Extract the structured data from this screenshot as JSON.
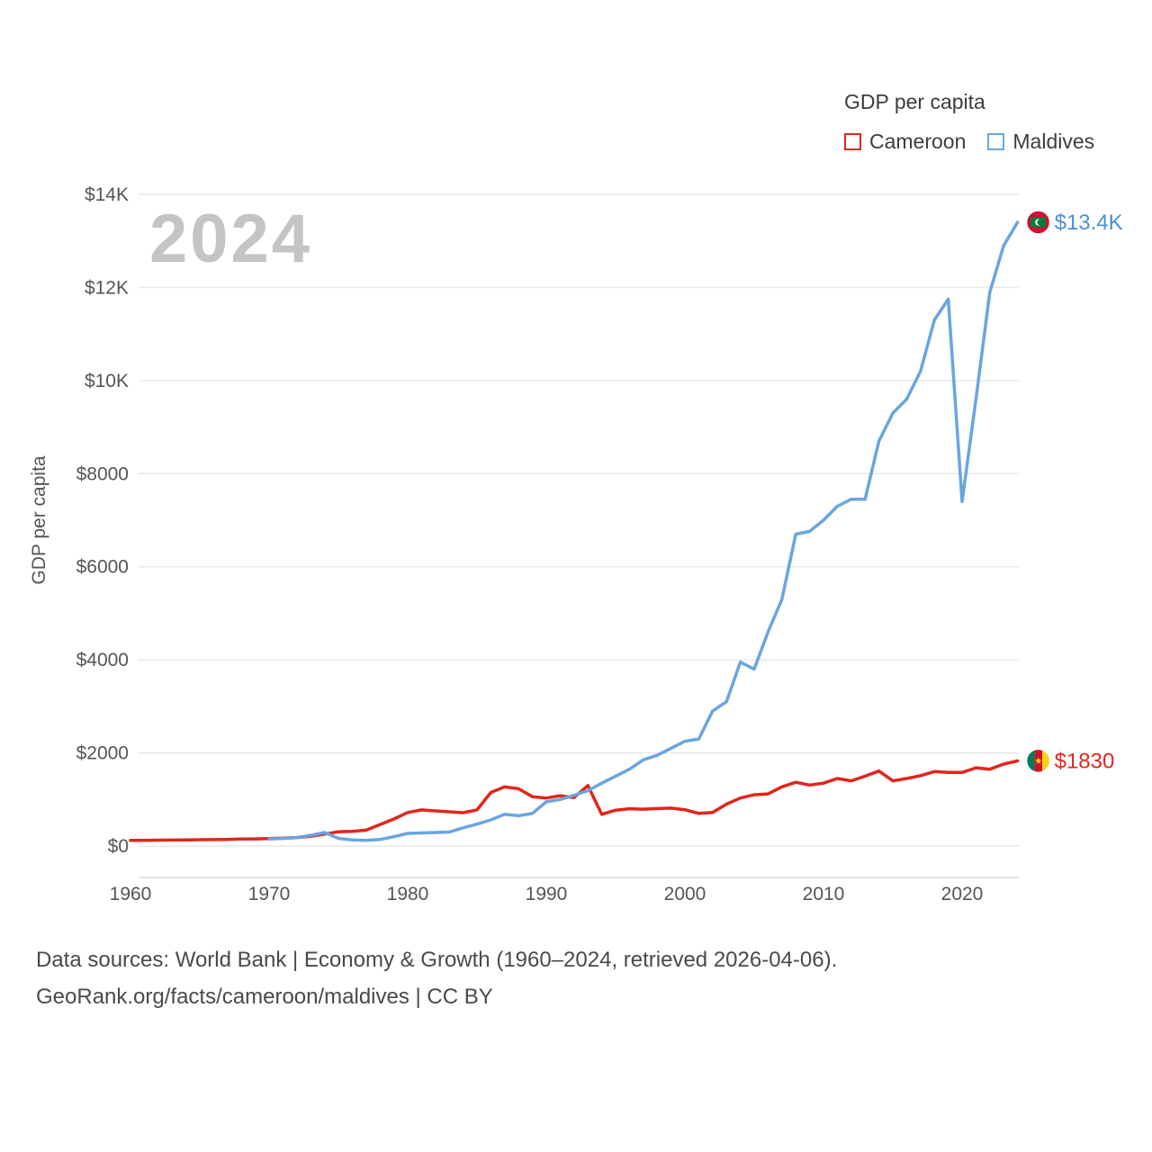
{
  "legend": {
    "title": "GDP per capita"
  },
  "footer": {
    "line1": "Data sources: World Bank | Economy & Growth (1960–2024, retrieved 2026-04-06).",
    "line2": "GeoRank.org/facts/cameroon/maldives | CC BY"
  },
  "chart_data": {
    "type": "line",
    "title": "GDP per capita",
    "ylabel": "GDP per capita",
    "watermark": "2024",
    "xlim": [
      1960,
      2024
    ],
    "ylim": [
      0,
      14000
    ],
    "grid": "horizontal",
    "legend_position": "top-right",
    "x_ticks": [
      1960,
      1970,
      1980,
      1990,
      2000,
      2010,
      2020
    ],
    "y_ticks": [
      {
        "value": 0,
        "label": "$0"
      },
      {
        "value": 2000,
        "label": "$2000"
      },
      {
        "value": 4000,
        "label": "$4000"
      },
      {
        "value": 6000,
        "label": "$6000"
      },
      {
        "value": 8000,
        "label": "$8000"
      },
      {
        "value": 10000,
        "label": "$10K"
      },
      {
        "value": 12000,
        "label": "$12K"
      },
      {
        "value": 14000,
        "label": "$14K"
      }
    ],
    "series": [
      {
        "name": "Cameroon",
        "color": "#e0261c",
        "end_label": "$1830",
        "end_label_color": "#e0261c",
        "flag_icon": "cameroon-flag-icon",
        "years": [
          1960,
          1961,
          1962,
          1963,
          1964,
          1965,
          1966,
          1967,
          1968,
          1969,
          1970,
          1971,
          1972,
          1973,
          1974,
          1975,
          1976,
          1977,
          1978,
          1979,
          1980,
          1981,
          1982,
          1983,
          1984,
          1985,
          1986,
          1987,
          1988,
          1989,
          1990,
          1991,
          1992,
          1993,
          1994,
          1995,
          1996,
          1997,
          1998,
          1999,
          2000,
          2001,
          2002,
          2003,
          2004,
          2005,
          2006,
          2007,
          2008,
          2009,
          2010,
          2011,
          2012,
          2013,
          2014,
          2015,
          2016,
          2017,
          2018,
          2019,
          2020,
          2021,
          2022,
          2023,
          2024
        ],
        "values": [
          120,
          122,
          125,
          128,
          132,
          135,
          138,
          142,
          148,
          152,
          160,
          168,
          182,
          210,
          255,
          305,
          315,
          340,
          460,
          580,
          720,
          775,
          755,
          735,
          715,
          775,
          1150,
          1270,
          1230,
          1060,
          1030,
          1080,
          1040,
          1300,
          680,
          770,
          800,
          790,
          805,
          815,
          780,
          700,
          720,
          900,
          1030,
          1100,
          1120,
          1270,
          1370,
          1310,
          1350,
          1450,
          1400,
          1500,
          1610,
          1400,
          1450,
          1510,
          1600,
          1580,
          1580,
          1680,
          1650,
          1760,
          1830
        ]
      },
      {
        "name": "Maldives",
        "color": "#6aa5e0",
        "end_label": "$13.4K",
        "end_label_color": "#4a90d9",
        "flag_icon": "maldives-flag-icon",
        "years": [
          1970,
          1971,
          1972,
          1973,
          1974,
          1975,
          1976,
          1977,
          1978,
          1979,
          1980,
          1981,
          1982,
          1983,
          1984,
          1985,
          1986,
          1987,
          1988,
          1989,
          1990,
          1991,
          1992,
          1993,
          1994,
          1995,
          1996,
          1997,
          1998,
          1999,
          2000,
          2001,
          2002,
          2003,
          2004,
          2005,
          2006,
          2007,
          2008,
          2009,
          2010,
          2011,
          2012,
          2013,
          2014,
          2015,
          2016,
          2017,
          2018,
          2019,
          2020,
          2021,
          2022,
          2023,
          2024
        ],
        "values": [
          150,
          162,
          180,
          230,
          290,
          165,
          130,
          120,
          140,
          200,
          270,
          280,
          290,
          300,
          390,
          470,
          560,
          680,
          650,
          700,
          950,
          1000,
          1090,
          1190,
          1350,
          1500,
          1650,
          1850,
          1950,
          2100,
          2250,
          2300,
          2900,
          3100,
          3950,
          3800,
          4600,
          5300,
          6700,
          6760,
          7000,
          7300,
          7450,
          7450,
          8700,
          9300,
          9600,
          10200,
          11300,
          11750,
          7400,
          9600,
          11900,
          12900,
          13400
        ]
      }
    ]
  }
}
